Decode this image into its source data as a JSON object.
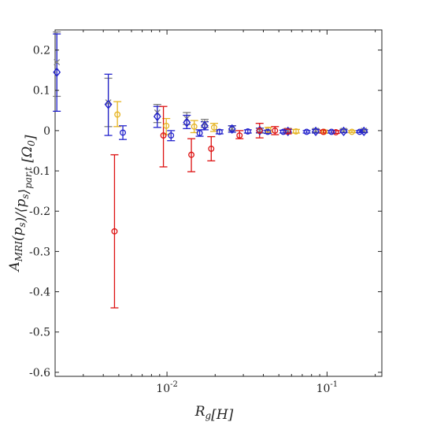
{
  "chart_data": {
    "type": "scatter",
    "title": "",
    "xlabel": "R_g[H]",
    "ylabel": "A_MRI(p_s)/⟨p_s⟩_par,t [Ω_0]",
    "x_scale": "log",
    "xlim": [
      0.002,
      0.22
    ],
    "ylim": [
      -0.61,
      0.25
    ],
    "x_ticks": [
      0.01,
      0.1
    ],
    "x_tick_labels": [
      "10^{-2}",
      "10^{-1}"
    ],
    "y_ticks": [
      0.2,
      0.1,
      0,
      -0.1,
      -0.2,
      -0.3,
      -0.4,
      -0.5,
      -0.6
    ],
    "y_tick_labels": [
      "0.2",
      "0.1",
      "0",
      "-0.1",
      "-0.2",
      "-0.3",
      "-0.4",
      "-0.5",
      "-0.6"
    ],
    "grid": false,
    "series": [
      {
        "color": "#7f7f7f",
        "marker": "x",
        "points": [
          {
            "x": 0.00205,
            "y": 0.17,
            "lo": 0.085,
            "hi": 0.245
          },
          {
            "x": 0.0043,
            "y": 0.07,
            "lo": 0.01,
            "hi": 0.13
          },
          {
            "x": 0.0087,
            "y": 0.045,
            "lo": 0.02,
            "hi": 0.065
          },
          {
            "x": 0.0133,
            "y": 0.03,
            "lo": 0.015,
            "hi": 0.045
          },
          {
            "x": 0.0172,
            "y": 0.018,
            "lo": 0.008,
            "hi": 0.028
          },
          {
            "x": 0.0255,
            "y": 0.005,
            "lo": 0.0,
            "hi": 0.012
          },
          {
            "x": 0.038,
            "y": 0.0,
            "lo": -0.006,
            "hi": 0.006
          },
          {
            "x": 0.057,
            "y": 0.0,
            "lo": -0.005,
            "hi": 0.005
          },
          {
            "x": 0.085,
            "y": 0.0,
            "lo": -0.004,
            "hi": 0.004
          },
          {
            "x": 0.127,
            "y": 0.0,
            "lo": -0.004,
            "hi": 0.004
          },
          {
            "x": 0.17,
            "y": 0.0,
            "lo": -0.003,
            "hi": 0.003
          }
        ]
      },
      {
        "color": "#2222cc",
        "marker": "diamond",
        "points": [
          {
            "x": 0.00205,
            "y": 0.145,
            "lo": 0.048,
            "hi": 0.24
          },
          {
            "x": 0.0043,
            "y": 0.065,
            "lo": -0.012,
            "hi": 0.14
          },
          {
            "x": 0.0087,
            "y": 0.035,
            "lo": 0.008,
            "hi": 0.06
          },
          {
            "x": 0.0133,
            "y": 0.02,
            "lo": 0.005,
            "hi": 0.038
          },
          {
            "x": 0.0172,
            "y": 0.012,
            "lo": 0.002,
            "hi": 0.022
          },
          {
            "x": 0.0255,
            "y": 0.004,
            "lo": -0.004,
            "hi": 0.012
          },
          {
            "x": 0.038,
            "y": 0.0,
            "lo": -0.005,
            "hi": 0.006
          },
          {
            "x": 0.057,
            "y": -0.002,
            "lo": -0.006,
            "hi": 0.003
          },
          {
            "x": 0.085,
            "y": -0.002,
            "lo": -0.006,
            "hi": 0.003
          },
          {
            "x": 0.127,
            "y": -0.002,
            "lo": -0.005,
            "hi": 0.002
          },
          {
            "x": 0.17,
            "y": -0.002,
            "lo": -0.005,
            "hi": 0.002
          }
        ]
      },
      {
        "color": "#e6b422",
        "marker": "circle",
        "points": [
          {
            "x": 0.0049,
            "y": 0.04,
            "lo": 0.01,
            "hi": 0.072
          },
          {
            "x": 0.0099,
            "y": 0.012,
            "lo": -0.01,
            "hi": 0.03
          },
          {
            "x": 0.0148,
            "y": 0.01,
            "lo": -0.005,
            "hi": 0.025
          },
          {
            "x": 0.0197,
            "y": 0.008,
            "lo": -0.002,
            "hi": 0.018
          },
          {
            "x": 0.043,
            "y": 0.002,
            "lo": -0.004,
            "hi": 0.008
          },
          {
            "x": 0.064,
            "y": -0.002,
            "lo": -0.006,
            "hi": 0.003
          },
          {
            "x": 0.096,
            "y": -0.003,
            "lo": -0.006,
            "hi": 0.001
          },
          {
            "x": 0.143,
            "y": -0.003,
            "lo": -0.005,
            "hi": 0.0
          }
        ]
      },
      {
        "color": "#dd1111",
        "marker": "circle",
        "points": [
          {
            "x": 0.0047,
            "y": -0.25,
            "lo": -0.44,
            "hi": -0.06
          },
          {
            "x": 0.0095,
            "y": -0.012,
            "lo": -0.09,
            "hi": 0.06
          },
          {
            "x": 0.0142,
            "y": -0.06,
            "lo": -0.102,
            "hi": -0.02
          },
          {
            "x": 0.0189,
            "y": -0.045,
            "lo": -0.075,
            "hi": -0.015
          },
          {
            "x": 0.0284,
            "y": -0.012,
            "lo": -0.02,
            "hi": 0.0
          },
          {
            "x": 0.0379,
            "y": 0.0,
            "lo": -0.018,
            "hi": 0.018
          },
          {
            "x": 0.0473,
            "y": 0.0,
            "lo": -0.01,
            "hi": 0.01
          },
          {
            "x": 0.0568,
            "y": -0.002,
            "lo": -0.008,
            "hi": 0.005
          },
          {
            "x": 0.0947,
            "y": -0.003,
            "lo": -0.006,
            "hi": 0.001
          },
          {
            "x": 0.1136,
            "y": -0.004,
            "lo": -0.007,
            "hi": 0.0
          }
        ]
      },
      {
        "color": "#2222cc",
        "marker": "circle",
        "points": [
          {
            "x": 0.0053,
            "y": -0.005,
            "lo": -0.022,
            "hi": 0.012
          },
          {
            "x": 0.0106,
            "y": -0.012,
            "lo": -0.025,
            "hi": 0.0
          },
          {
            "x": 0.016,
            "y": -0.006,
            "lo": -0.014,
            "hi": 0.002
          },
          {
            "x": 0.0213,
            "y": -0.003,
            "lo": -0.008,
            "hi": 0.002
          },
          {
            "x": 0.032,
            "y": -0.002,
            "lo": -0.006,
            "hi": 0.002
          },
          {
            "x": 0.0426,
            "y": -0.003,
            "lo": -0.007,
            "hi": 0.001
          },
          {
            "x": 0.0533,
            "y": -0.003,
            "lo": -0.006,
            "hi": 0.001
          },
          {
            "x": 0.0746,
            "y": -0.003,
            "lo": -0.006,
            "hi": 0.0
          },
          {
            "x": 0.1066,
            "y": -0.003,
            "lo": -0.006,
            "hi": 0.0
          },
          {
            "x": 0.16,
            "y": -0.003,
            "lo": -0.005,
            "hi": 0.0
          }
        ]
      }
    ]
  }
}
